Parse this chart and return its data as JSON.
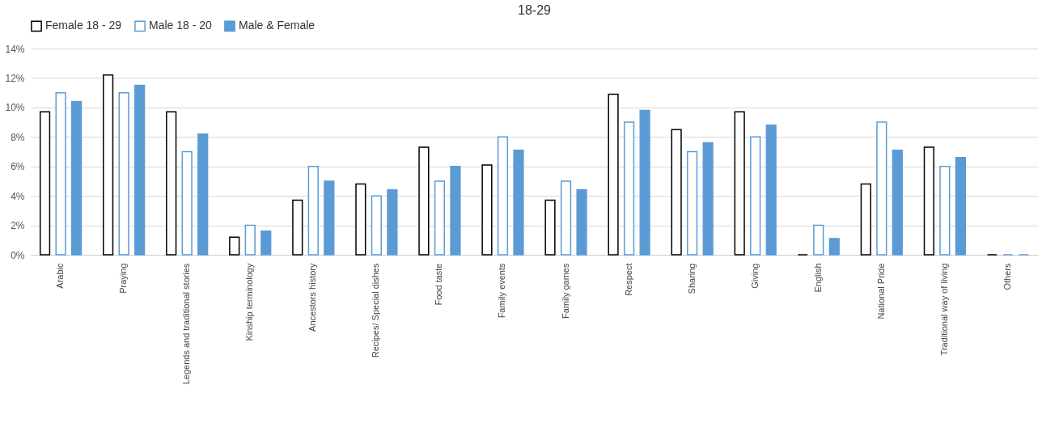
{
  "chart_data": {
    "type": "bar",
    "title": "18-29",
    "categories": [
      "Arabic",
      "Praying",
      "Legends and traditional stories",
      "Kinship terminology",
      "Ancestors history",
      "Recipes/ Special dishes",
      "Food taste",
      "Family events",
      "Family games",
      "Respect",
      "Sharing",
      "Giving",
      "English",
      "National Pride",
      "Traditional way of living",
      "Others"
    ],
    "series": [
      {
        "name": "Female 18 - 29",
        "color": "#000000",
        "values": [
          9.7,
          12.2,
          9.7,
          1.2,
          3.7,
          4.8,
          7.3,
          6.1,
          3.7,
          10.9,
          8.5,
          9.7,
          0,
          4.8,
          7.3,
          0
        ]
      },
      {
        "name": "Male 18 - 20",
        "color": "#5b9bd5",
        "values": [
          11,
          11,
          7,
          2,
          6,
          4,
          5,
          8,
          5,
          9,
          7,
          8,
          2,
          9,
          6,
          0
        ]
      },
      {
        "name": "Male & Female",
        "color": "#5b9bd5",
        "values": [
          10.4,
          11.5,
          8.2,
          1.6,
          5,
          4.4,
          6,
          7.1,
          4.4,
          9.8,
          7.6,
          8.8,
          1.1,
          7.1,
          6.6,
          0
        ]
      }
    ],
    "ylim": [
      0,
      14
    ],
    "yticks": [
      {
        "value": 0,
        "label": "0%"
      },
      {
        "value": 2,
        "label": "2%"
      },
      {
        "value": 4,
        "label": "4%"
      },
      {
        "value": 6,
        "label": "6%"
      },
      {
        "value": 8,
        "label": "8%"
      },
      {
        "value": 10,
        "label": "10%"
      },
      {
        "value": 12,
        "label": "12%"
      },
      {
        "value": 14,
        "label": "14%"
      }
    ],
    "grid": "y",
    "legend": "top"
  }
}
